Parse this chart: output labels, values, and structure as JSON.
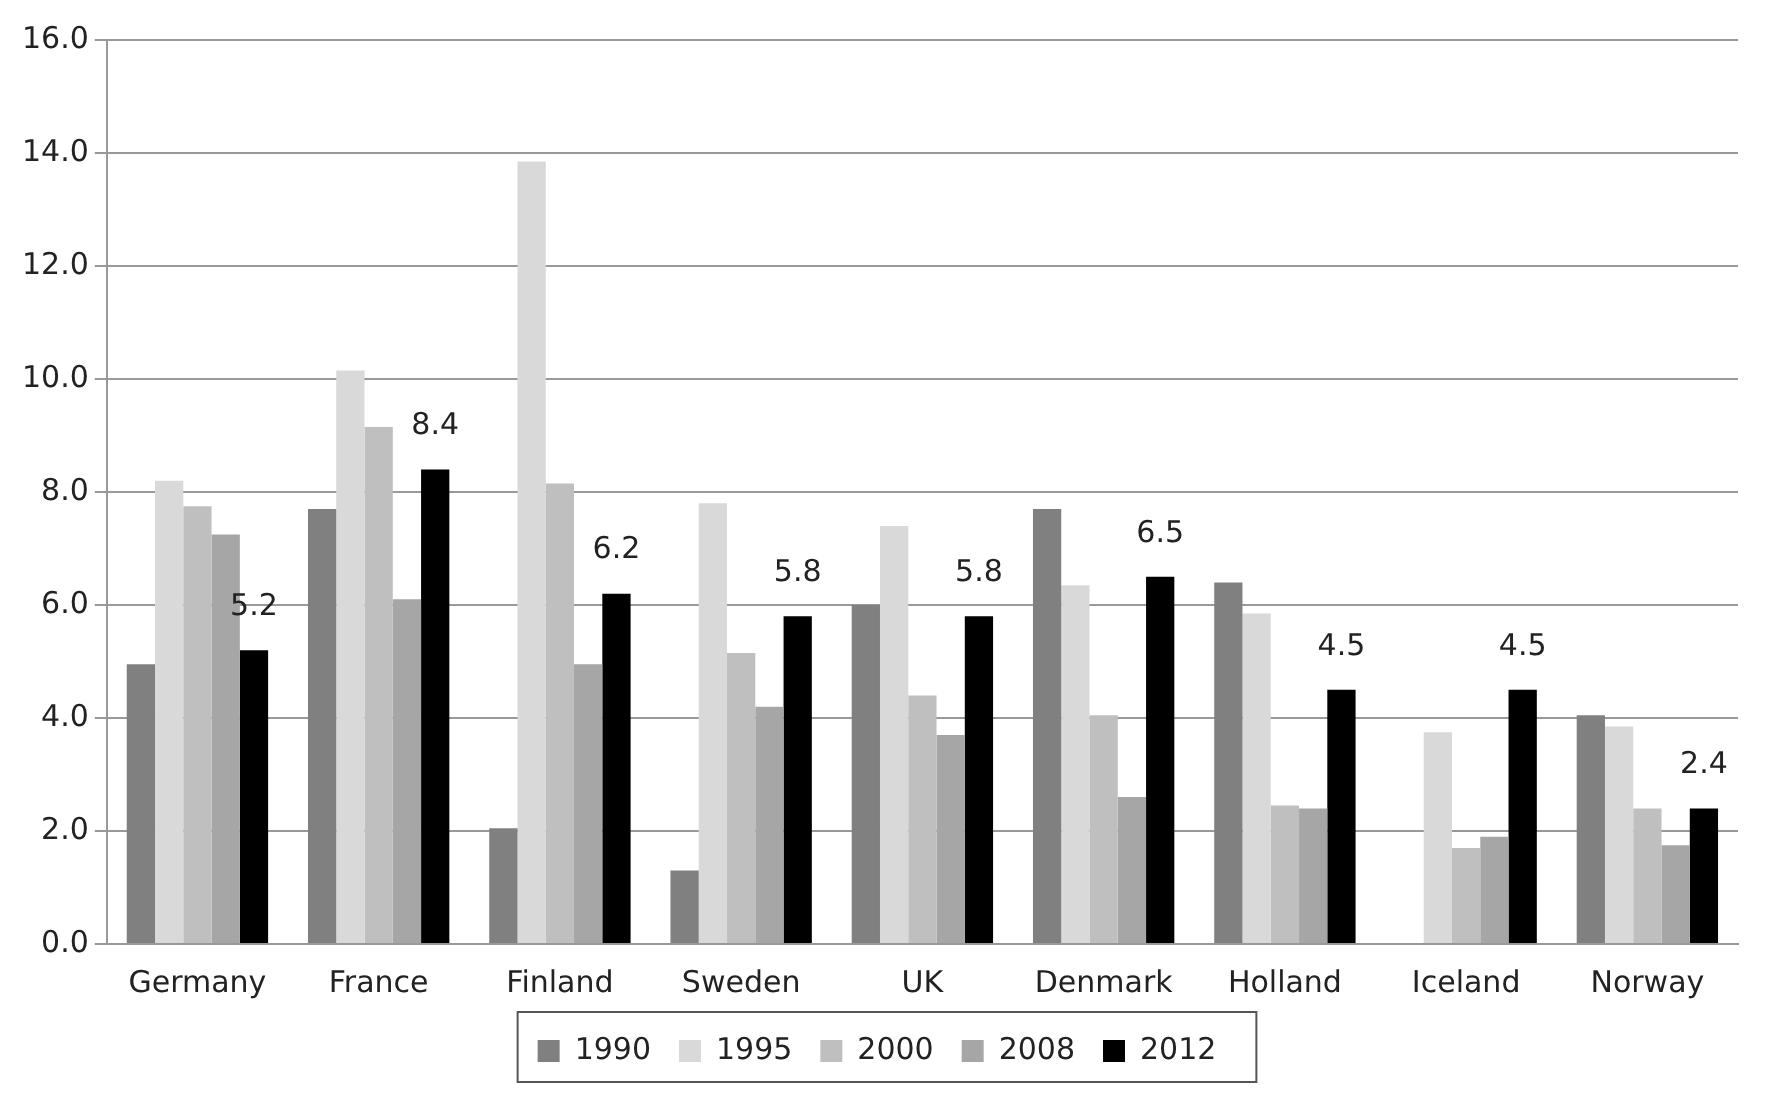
{
  "chart_data": {
    "type": "bar",
    "categories": [
      "Germany",
      "France",
      "Finland",
      "Sweden",
      "UK",
      "Denmark",
      "Holland",
      "Iceland",
      "Norway"
    ],
    "series": [
      {
        "name": "1990",
        "color": "#808080",
        "values": [
          4.95,
          7.7,
          2.05,
          1.3,
          6.0,
          7.7,
          6.4,
          null,
          4.05
        ]
      },
      {
        "name": "1995",
        "color": "#d9d9d9",
        "values": [
          8.2,
          10.15,
          13.85,
          7.8,
          7.4,
          6.35,
          5.85,
          3.75,
          3.85
        ]
      },
      {
        "name": "2000",
        "color": "#bfbfbf",
        "values": [
          7.75,
          9.15,
          8.15,
          5.15,
          4.4,
          4.05,
          2.45,
          1.7,
          2.4
        ]
      },
      {
        "name": "2008",
        "color": "#a6a6a6",
        "values": [
          7.25,
          6.1,
          4.95,
          4.2,
          3.7,
          2.6,
          2.4,
          1.9,
          1.75
        ]
      },
      {
        "name": "2012",
        "color": "#000000",
        "values": [
          5.2,
          8.4,
          6.2,
          5.8,
          5.8,
          6.5,
          4.5,
          4.5,
          2.4
        ],
        "value_labels": [
          "5.2",
          "8.4",
          "6.2",
          "5.8",
          "5.8",
          "6.5",
          "4.5",
          "4.5",
          "2.4"
        ]
      }
    ],
    "ylim": [
      0,
      16
    ],
    "yticks": [
      {
        "value": 0,
        "label": "0.0"
      },
      {
        "value": 2,
        "label": "2.0"
      },
      {
        "value": 4,
        "label": "4.0"
      },
      {
        "value": 6,
        "label": "6.0"
      },
      {
        "value": 8,
        "label": "8.0"
      },
      {
        "value": 10,
        "label": "10.0"
      },
      {
        "value": 12,
        "label": "12.0"
      },
      {
        "value": 14,
        "label": "14.0"
      },
      {
        "value": 16,
        "label": "16.0"
      }
    ],
    "grid": "y",
    "legend": "bottom"
  }
}
